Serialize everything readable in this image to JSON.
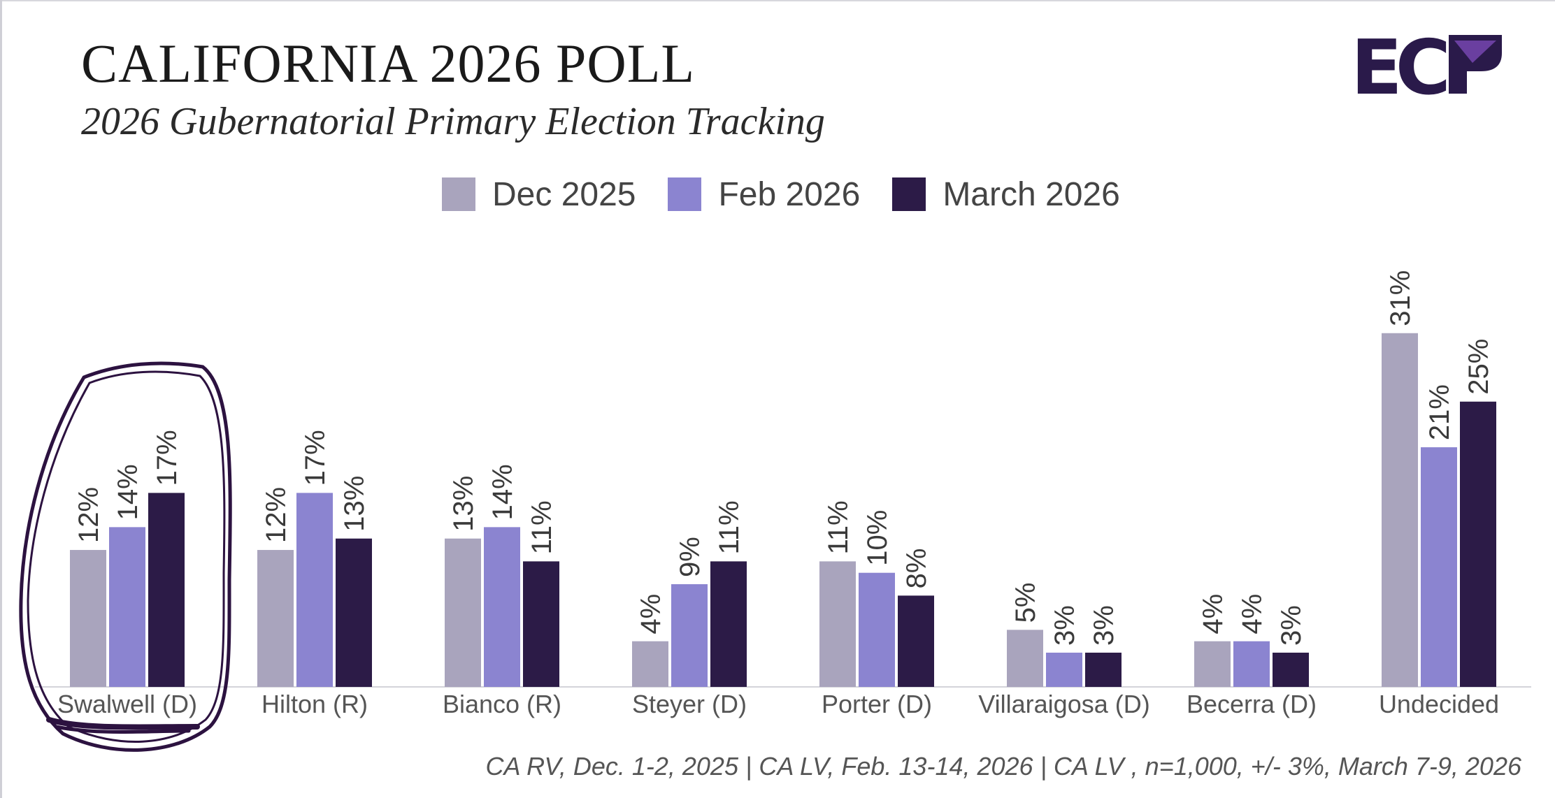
{
  "header": {
    "title": "CALIFORNIA 2026 POLL",
    "subtitle": "2026 Gubernatorial Primary Election Tracking"
  },
  "logo": {
    "text": "ECP",
    "color": "#2a1a4a",
    "accent": "#6a3fa0"
  },
  "colors": {
    "Dec 2025": "#a9a4bd",
    "Feb 2026": "#8b84d0",
    "March 2026": "#2c1b47",
    "annotation": "#2c1240"
  },
  "footnote": "CA RV, Dec. 1-2, 2025 | CA LV, Feb. 13-14, 2026 | CA LV , n=1,000, +/- 3%, March 7-9, 2026",
  "chart_data": {
    "type": "bar",
    "categories": [
      "Swalwell (D)",
      "Hilton (R)",
      "Bianco (R)",
      "Steyer (D)",
      "Porter (D)",
      "Villaraigosa (D)",
      "Becerra (D)",
      "Undecided"
    ],
    "series": [
      {
        "name": "Dec 2025",
        "values": [
          12,
          12,
          13,
          4,
          11,
          5,
          4,
          31
        ]
      },
      {
        "name": "Feb 2026",
        "values": [
          14,
          17,
          14,
          9,
          10,
          3,
          4,
          21
        ]
      },
      {
        "name": "March 2026",
        "values": [
          17,
          13,
          11,
          11,
          8,
          3,
          3,
          25
        ]
      }
    ],
    "value_suffix": "%",
    "ylim": [
      0,
      35
    ],
    "grid": false,
    "legend": "top-center",
    "highlighted_category": "Swalwell (D)"
  }
}
